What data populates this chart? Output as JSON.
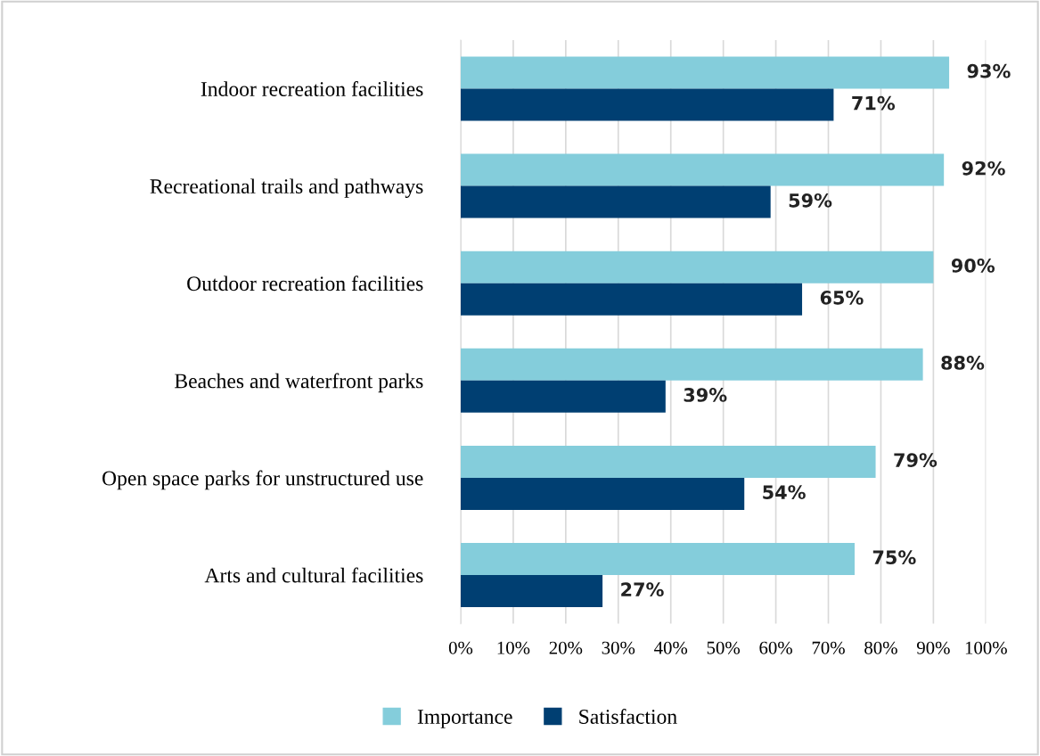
{
  "chart_data": {
    "type": "bar",
    "orientation": "horizontal",
    "categories": [
      "Indoor recreation facilities",
      "Recreational trails and pathways",
      "Outdoor recreation facilities",
      "Beaches and waterfront parks",
      "Open space parks for unstructured use",
      "Arts and cultural facilities"
    ],
    "series": [
      {
        "name": "Importance",
        "color": "#84cddb",
        "values": [
          93,
          92,
          90,
          88,
          79,
          75
        ],
        "value_labels": [
          "93%",
          "92%",
          "90%",
          "88%",
          "79%",
          "75%"
        ]
      },
      {
        "name": "Satisfaction",
        "color": "#003f72",
        "values": [
          71,
          59,
          65,
          39,
          54,
          27
        ],
        "value_labels": [
          "71%",
          "59%",
          "65%",
          "39%",
          "54%",
          "27%"
        ]
      }
    ],
    "xlim": [
      0,
      100
    ],
    "xticks": [
      {
        "value": 0,
        "label": "0%"
      },
      {
        "value": 10,
        "label": "10%"
      },
      {
        "value": 20,
        "label": "20%"
      },
      {
        "value": 30,
        "label": "30%"
      },
      {
        "value": 40,
        "label": "40%"
      },
      {
        "value": 50,
        "label": "50%"
      },
      {
        "value": 60,
        "label": "60%"
      },
      {
        "value": 70,
        "label": "70%"
      },
      {
        "value": 80,
        "label": "80%"
      },
      {
        "value": 90,
        "label": "90%"
      },
      {
        "value": 100,
        "label": "100%"
      }
    ],
    "grid": "x",
    "legend": "bottom"
  }
}
